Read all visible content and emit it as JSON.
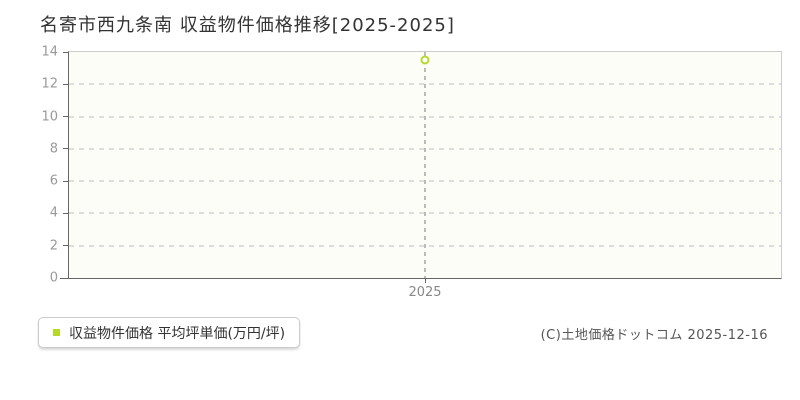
{
  "title": "名寄市西九条南 収益物件価格推移[2025-2025]",
  "legend": {
    "label": "収益物件価格 平均坪単価(万円/坪)"
  },
  "copyright": "(C)土地価格ドットコム 2025-12-16",
  "colors": {
    "accent": "#b5d92b",
    "axis": "#666666",
    "plot_border": "#cccccc",
    "gridline": "#dddddd",
    "guide_line": "#bbbbbb",
    "title_text": "#333333",
    "tick_text": "#999999",
    "legend_text": "#333333",
    "copyright_text": "#555555",
    "plot_background": "#fdfdf7"
  },
  "chart_data": {
    "type": "scatter",
    "title": "名寄市西九条南 収益物件価格推移[2025-2025]",
    "x": [
      2025
    ],
    "xticklabels": [
      "2025"
    ],
    "series": [
      {
        "name": "収益物件価格 平均坪単価(万円/坪)",
        "values": [
          13.5
        ]
      }
    ],
    "xlabel": "",
    "ylabel": "",
    "ylim": [
      0,
      14
    ],
    "yticks": [
      0,
      2,
      4,
      6,
      8,
      10,
      12,
      14
    ],
    "grid": "horizontal-dashed",
    "legend_position": "bottom-left-outside",
    "marker": {
      "shape": "open-circle",
      "color": "#b5d92b"
    },
    "guide_line": {
      "style": "vertical-dashed",
      "color": "#bbbbbb"
    }
  }
}
